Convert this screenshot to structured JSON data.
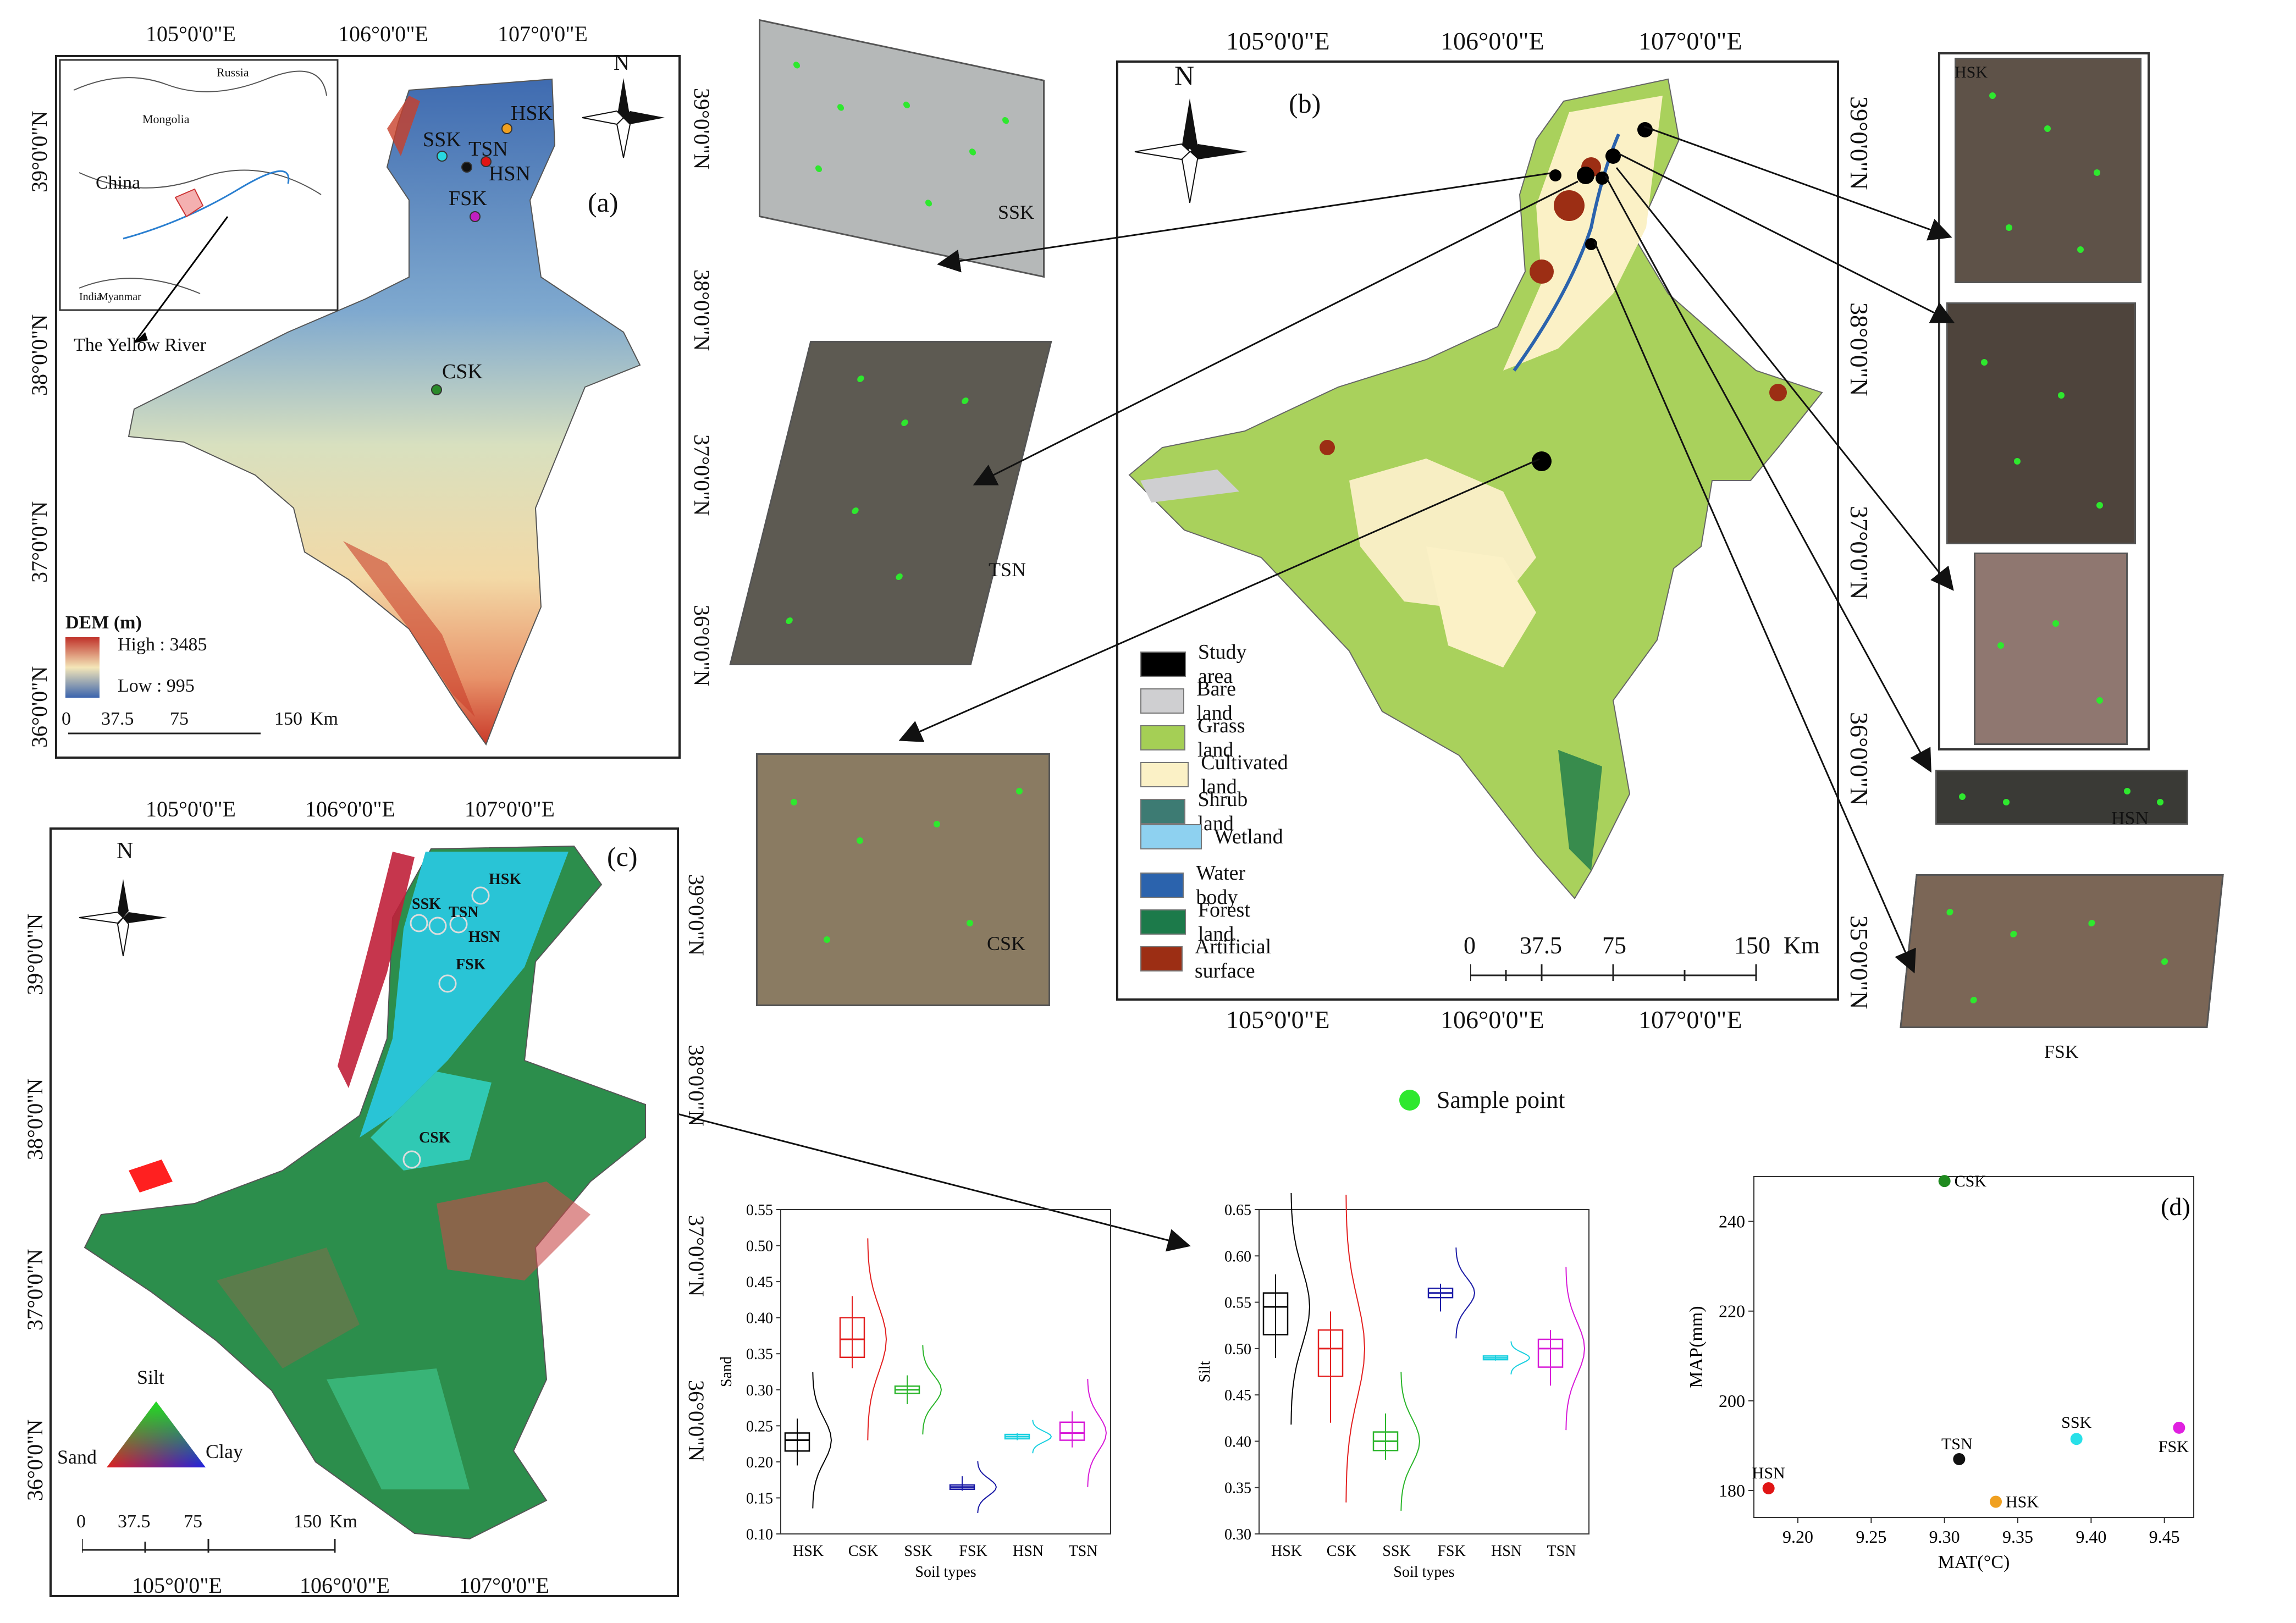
{
  "panel_a": {
    "label": "(a)",
    "top_lons": [
      "105°0'0\"E",
      "106°0'0\"E",
      "107°0'0\"E"
    ],
    "lats_left": [
      "39°0'0\"N",
      "38°0'0\"N",
      "37°0'0\"N",
      "36°0'0\"N"
    ],
    "lats_right": [
      "39°0'0\"N",
      "38°0'0\"N",
      "37°0'0\"N",
      "36°0'0\"N"
    ],
    "bottom_lons": [
      "105°0'0\"E",
      "106°0'0\"E",
      "107°0'0\"E"
    ],
    "inset": {
      "russia": "Russia",
      "mongolia": "Mongolia",
      "china": "China",
      "myanmar": "Myanmar",
      "india": "India"
    },
    "river_label": "The Yellow River",
    "north": "N",
    "sites": [
      "HSK",
      "SSK",
      "TSN",
      "HSN",
      "FSK",
      "CSK"
    ],
    "dem": {
      "title": "DEM (m)",
      "high": "High : 3485",
      "low": "Low : 995"
    },
    "scale": [
      "0",
      "37.5",
      "75",
      "150",
      "Km"
    ]
  },
  "panel_b": {
    "label": "(b)",
    "top_lons": [
      "105°0'0\"E",
      "106°0'0\"E",
      "107°0'0\"E"
    ],
    "lats": [
      "39°0'0\"N",
      "38°0'0\"N",
      "37°0'0\"N",
      "36°0'0\"N",
      "35°0'0\"N"
    ],
    "bottom_lons": [
      "105°0'0\"E",
      "106°0'0\"E",
      "107°0'0\"E"
    ],
    "north": "N",
    "legend": [
      {
        "label": "Study area",
        "color": "#000000"
      },
      {
        "label": "Bare land",
        "color": "#cfcfd1"
      },
      {
        "label": "Grass land",
        "color": "#a5cf55"
      },
      {
        "label": "Cultivated land",
        "color": "#fbf1c6"
      },
      {
        "label": "Shrub land",
        "color": "#3d7b73"
      },
      {
        "label": "Wetland",
        "color": "#8ed1f0"
      },
      {
        "label": "Water body",
        "color": "#2b63ad"
      },
      {
        "label": "Forest land",
        "color": "#1c7a4a"
      },
      {
        "label": "Artificial surface",
        "color": "#9c2e14"
      }
    ],
    "scale": [
      "0",
      "37.5",
      "75",
      "150",
      "Km"
    ]
  },
  "thumbnails": [
    "SSK",
    "TSN",
    "CSK",
    "HSK",
    "HSN",
    "FSK"
  ],
  "sample_point": "Sample point",
  "panel_c": {
    "label": "(c)",
    "lons": [
      "105°0'0\"E",
      "106°0'0\"E",
      "107°0'0\"E"
    ],
    "lats_left": [
      "39°0'0\"N",
      "38°0'0\"N",
      "37°0'0\"N",
      "36°0'0\"N"
    ],
    "lats_right": [
      "39°0'0\"N",
      "38°0'0\"N",
      "37°0'0\"N",
      "36°0'0\"N"
    ],
    "north": "N",
    "sites": [
      "HSK",
      "SSK",
      "TSN",
      "HSN",
      "FSK",
      "CSK"
    ],
    "ternary": {
      "top": "Silt",
      "left": "Sand",
      "right": "Clay"
    },
    "scale": [
      "0",
      "37.5",
      "75",
      "150",
      "Km"
    ]
  },
  "chart_data": [
    {
      "type": "box",
      "ylabel": "Sand",
      "xlabel": "Soil types",
      "categories": [
        "HSK",
        "CSK",
        "SSK",
        "FSK",
        "HSN",
        "TSN"
      ],
      "colors": [
        "#000000",
        "#e32020",
        "#2ab52a",
        "#1a1aa6",
        "#1ad0e0",
        "#d81bd8"
      ],
      "yticks": [
        "0.10",
        "0.15",
        "0.20",
        "0.25",
        "0.30",
        "0.35",
        "0.40",
        "0.45",
        "0.50",
        "0.55"
      ],
      "ylim": [
        0.1,
        0.55
      ],
      "medians": [
        0.23,
        0.37,
        0.3,
        0.165,
        0.235,
        0.24
      ],
      "q1": [
        0.215,
        0.345,
        0.295,
        0.162,
        0.232,
        0.23
      ],
      "q3": [
        0.24,
        0.4,
        0.305,
        0.168,
        0.238,
        0.255
      ],
      "min": [
        0.195,
        0.33,
        0.28,
        0.16,
        0.23,
        0.22
      ],
      "max": [
        0.26,
        0.43,
        0.32,
        0.18,
        0.24,
        0.27
      ]
    },
    {
      "type": "box",
      "ylabel": "Silt",
      "xlabel": "Soil types",
      "categories": [
        "HSK",
        "CSK",
        "SSK",
        "FSK",
        "HSN",
        "TSN"
      ],
      "colors": [
        "#000000",
        "#e32020",
        "#2ab52a",
        "#1a1aa6",
        "#1ad0e0",
        "#d81bd8"
      ],
      "yticks": [
        "0.30",
        "0.35",
        "0.40",
        "0.45",
        "0.50",
        "0.55",
        "0.60",
        "0.65"
      ],
      "ylim": [
        0.3,
        0.65
      ],
      "medians": [
        0.545,
        0.5,
        0.4,
        0.56,
        0.49,
        0.5
      ],
      "q1": [
        0.515,
        0.47,
        0.39,
        0.555,
        0.488,
        0.48
      ],
      "q3": [
        0.56,
        0.52,
        0.41,
        0.565,
        0.492,
        0.51
      ],
      "min": [
        0.49,
        0.42,
        0.38,
        0.54,
        0.487,
        0.46
      ],
      "max": [
        0.58,
        0.54,
        0.43,
        0.57,
        0.493,
        0.52
      ]
    },
    {
      "type": "scatter",
      "label": "(d)",
      "xlabel": "MAT(°C)",
      "ylabel": "MAP(mm)",
      "xticks": [
        "9.20",
        "9.25",
        "9.30",
        "9.35",
        "9.40",
        "9.45"
      ],
      "yticks": [
        "180",
        "200",
        "220",
        "240"
      ],
      "xlim": [
        9.17,
        9.47
      ],
      "ylim": [
        174,
        250
      ],
      "points": [
        {
          "name": "CSK",
          "x": 9.3,
          "y": 249,
          "color": "#1f8a1f"
        },
        {
          "name": "HSN",
          "x": 9.18,
          "y": 180.5,
          "color": "#e01515"
        },
        {
          "name": "TSN",
          "x": 9.31,
          "y": 187,
          "color": "#111111"
        },
        {
          "name": "HSK",
          "x": 9.335,
          "y": 177.5,
          "color": "#f0a020"
        },
        {
          "name": "SSK",
          "x": 9.39,
          "y": 191.5,
          "color": "#28e0e8"
        },
        {
          "name": "FSK",
          "x": 9.46,
          "y": 194,
          "color": "#e020e0"
        }
      ]
    }
  ]
}
